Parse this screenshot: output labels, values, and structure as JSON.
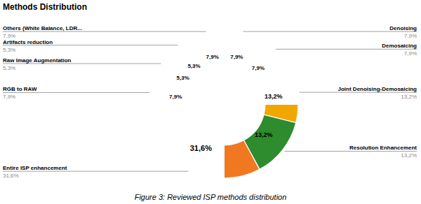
{
  "chart_data": {
    "type": "donut",
    "title": "Methods Distribution",
    "categories": [
      "Denoising",
      "Demosaicing",
      "Joint Denoising-Demosaicing",
      "Resolution Enhancement",
      "Entire ISP enhancement",
      "RGB to RAW",
      "Raw Image Augmentation",
      "Artifacts reduction",
      "Others (White Balance, LDR..."
    ],
    "values": [
      7.9,
      7.9,
      13.2,
      13.2,
      31.6,
      7.9,
      5.3,
      5.3,
      7.9
    ],
    "value_labels": [
      "7,9%",
      "7,9%",
      "13,2%",
      "13,2%",
      "31,6%",
      "7,9%",
      "5,3%",
      "5,3%",
      "7,9%"
    ],
    "colors": [
      "#4472C4",
      "#C0504D",
      "#F0A800",
      "#2E8B2E",
      "#F07820",
      "#00A0A0",
      "#909090",
      "#78B478",
      "#F5F0C0"
    ],
    "data_labels": true,
    "caption": "Figure 3: Reviewed ISP methods distribution"
  }
}
